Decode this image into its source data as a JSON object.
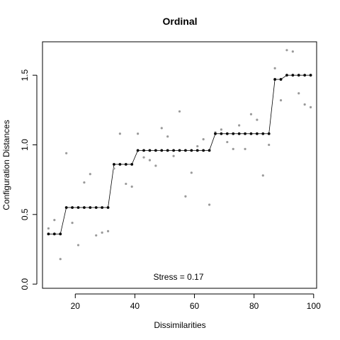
{
  "chart_data": {
    "type": "scatter",
    "title": "Ordinal",
    "xlabel": "Dissimilarities",
    "ylabel": "Configuration Distances",
    "xlim": [
      9,
      101
    ],
    "ylim": [
      -0.03,
      1.74
    ],
    "xticks": [
      20,
      40,
      60,
      80,
      100
    ],
    "yticks": [
      0.0,
      0.5,
      1.0,
      1.5
    ],
    "xtick_labels": [
      "20",
      "40",
      "60",
      "80",
      "100"
    ],
    "ytick_labels": [
      "0.0",
      "0.5",
      "1.0",
      "1.5"
    ],
    "annotation": "Stress = 0.17",
    "grid": false,
    "series": [
      {
        "role": "observed",
        "color": "#9a9a9a",
        "points": [
          [
            11,
            0.4
          ],
          [
            13,
            0.46
          ],
          [
            15,
            0.18
          ],
          [
            17,
            0.94
          ],
          [
            19,
            0.44
          ],
          [
            21,
            0.28
          ],
          [
            23,
            0.73
          ],
          [
            25,
            0.79
          ],
          [
            27,
            0.35
          ],
          [
            29,
            0.37
          ],
          [
            31,
            0.38
          ],
          [
            33,
            0.83
          ],
          [
            35,
            1.08
          ],
          [
            37,
            0.72
          ],
          [
            39,
            0.7
          ],
          [
            41,
            1.08
          ],
          [
            43,
            0.91
          ],
          [
            45,
            0.89
          ],
          [
            47,
            0.85
          ],
          [
            49,
            1.12
          ],
          [
            51,
            1.06
          ],
          [
            53,
            0.92
          ],
          [
            55,
            1.24
          ],
          [
            57,
            0.63
          ],
          [
            59,
            0.8
          ],
          [
            61,
            0.99
          ],
          [
            63,
            1.04
          ],
          [
            65,
            0.57
          ],
          [
            67,
            1.09
          ],
          [
            69,
            1.11
          ],
          [
            71,
            1.02
          ],
          [
            73,
            0.97
          ],
          [
            75,
            1.14
          ],
          [
            77,
            0.97
          ],
          [
            79,
            1.22
          ],
          [
            81,
            1.18
          ],
          [
            83,
            0.78
          ],
          [
            85,
            1.0
          ],
          [
            87,
            1.55
          ],
          [
            89,
            1.32
          ],
          [
            91,
            1.68
          ],
          [
            93,
            1.67
          ],
          [
            95,
            1.37
          ],
          [
            97,
            1.29
          ],
          [
            99,
            1.27
          ]
        ]
      },
      {
        "role": "fitted",
        "color": "#000000",
        "points": [
          [
            11,
            0.36
          ],
          [
            13,
            0.36
          ],
          [
            15,
            0.36
          ],
          [
            17,
            0.55
          ],
          [
            19,
            0.55
          ],
          [
            21,
            0.55
          ],
          [
            23,
            0.55
          ],
          [
            25,
            0.55
          ],
          [
            27,
            0.55
          ],
          [
            29,
            0.55
          ],
          [
            31,
            0.55
          ],
          [
            33,
            0.86
          ],
          [
            35,
            0.86
          ],
          [
            37,
            0.86
          ],
          [
            39,
            0.86
          ],
          [
            41,
            0.96
          ],
          [
            43,
            0.96
          ],
          [
            45,
            0.96
          ],
          [
            47,
            0.96
          ],
          [
            49,
            0.96
          ],
          [
            51,
            0.96
          ],
          [
            53,
            0.96
          ],
          [
            55,
            0.96
          ],
          [
            57,
            0.96
          ],
          [
            59,
            0.96
          ],
          [
            61,
            0.96
          ],
          [
            63,
            0.96
          ],
          [
            65,
            0.96
          ],
          [
            67,
            1.08
          ],
          [
            69,
            1.08
          ],
          [
            71,
            1.08
          ],
          [
            73,
            1.08
          ],
          [
            75,
            1.08
          ],
          [
            77,
            1.08
          ],
          [
            79,
            1.08
          ],
          [
            81,
            1.08
          ],
          [
            83,
            1.08
          ],
          [
            85,
            1.08
          ],
          [
            87,
            1.47
          ],
          [
            89,
            1.47
          ],
          [
            91,
            1.5
          ],
          [
            93,
            1.5
          ],
          [
            95,
            1.5
          ],
          [
            97,
            1.5
          ],
          [
            99,
            1.5
          ]
        ]
      }
    ]
  }
}
